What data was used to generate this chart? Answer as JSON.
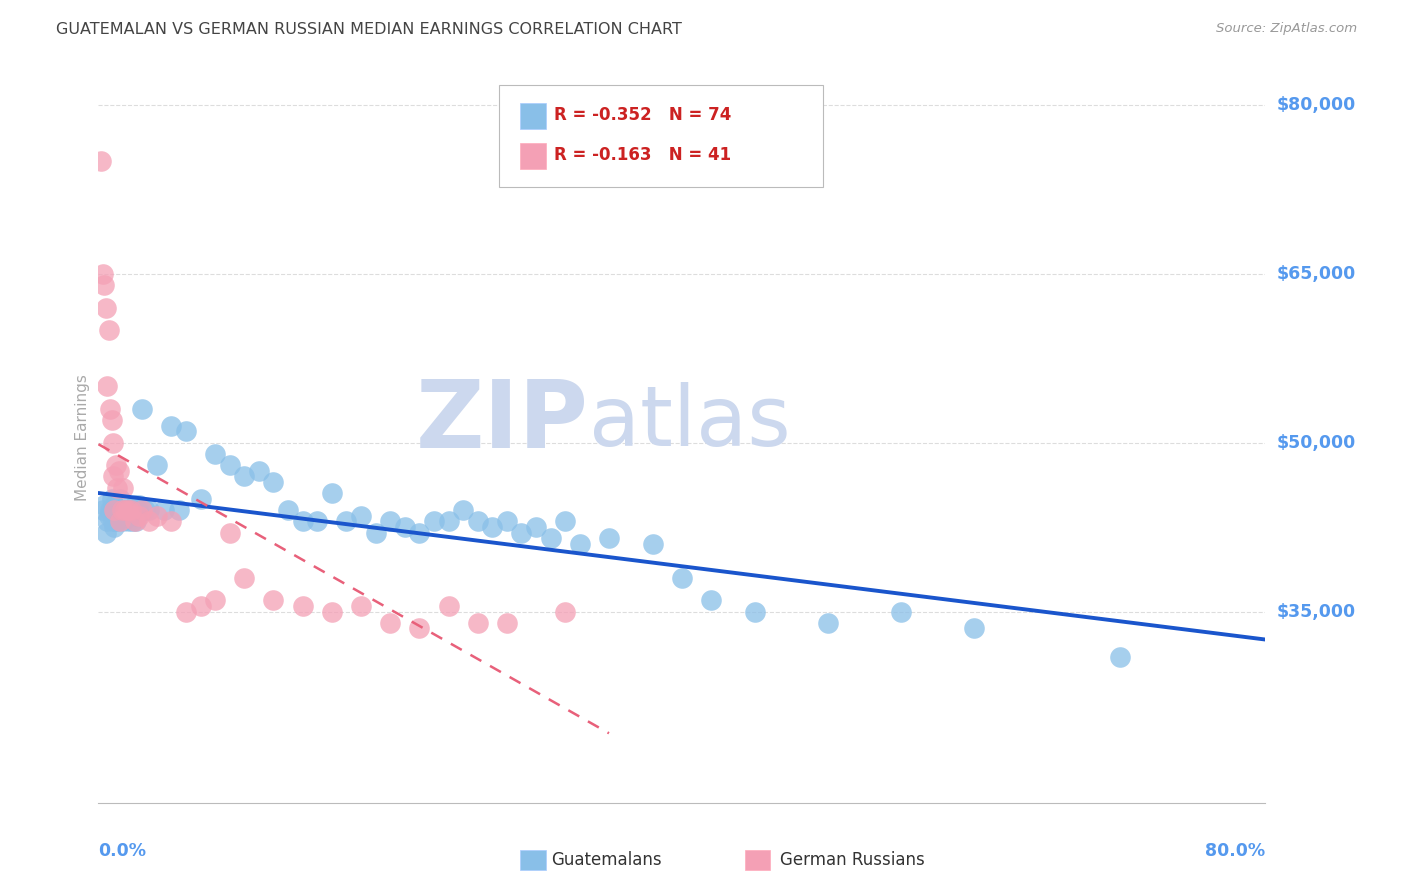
{
  "title": "GUATEMALAN VS GERMAN RUSSIAN MEDIAN EARNINGS CORRELATION CHART",
  "source": "Source: ZipAtlas.com",
  "ylabel": "Median Earnings",
  "y_ticks": [
    35000,
    50000,
    65000,
    80000
  ],
  "y_tick_labels": [
    "$35,000",
    "$50,000",
    "$65,000",
    "$80,000"
  ],
  "x_min": 0.0,
  "x_max": 80.0,
  "y_min": 18000,
  "y_max": 83000,
  "watermark_line1": "ZIP",
  "watermark_line2": "atlas",
  "guatemalan_color": "#89bfe8",
  "german_russian_color": "#f4a0b5",
  "guatemalan_line_color": "#1a55cc",
  "german_russian_line_color": "#e8607a",
  "legend_r1": "R = -0.352",
  "legend_n1": "N = 74",
  "legend_r2": "R = -0.163",
  "legend_n2": "N = 41",
  "legend_label1": "Guatemalans",
  "legend_label2": "German Russians",
  "guatemalan_x": [
    0.3,
    0.4,
    0.5,
    0.6,
    0.7,
    0.8,
    0.9,
    1.0,
    1.0,
    1.1,
    1.1,
    1.2,
    1.3,
    1.3,
    1.4,
    1.5,
    1.5,
    1.6,
    1.7,
    1.8,
    1.9,
    2.0,
    2.1,
    2.2,
    2.3,
    2.4,
    2.5,
    2.6,
    2.7,
    2.8,
    3.0,
    3.2,
    3.5,
    4.0,
    4.5,
    5.0,
    5.5,
    6.0,
    7.0,
    8.0,
    9.0,
    10.0,
    11.0,
    12.0,
    13.0,
    14.0,
    15.0,
    16.0,
    17.0,
    18.0,
    19.0,
    20.0,
    21.0,
    22.0,
    23.0,
    24.0,
    25.0,
    26.0,
    27.0,
    28.0,
    29.0,
    30.0,
    31.0,
    32.0,
    33.0,
    35.0,
    38.0,
    40.0,
    42.0,
    45.0,
    50.0,
    55.0,
    60.0,
    70.0
  ],
  "guatemalan_y": [
    44000,
    44500,
    42000,
    43000,
    43500,
    44000,
    45000,
    44000,
    43000,
    44500,
    42500,
    43000,
    43500,
    43000,
    44000,
    45000,
    43500,
    44000,
    43000,
    44000,
    43500,
    44000,
    43000,
    43500,
    44000,
    43000,
    44500,
    43000,
    44000,
    44500,
    53000,
    44000,
    44000,
    48000,
    44000,
    51500,
    44000,
    51000,
    45000,
    49000,
    48000,
    47000,
    47500,
    46500,
    44000,
    43000,
    43000,
    45500,
    43000,
    43500,
    42000,
    43000,
    42500,
    42000,
    43000,
    43000,
    44000,
    43000,
    42500,
    43000,
    42000,
    42500,
    41500,
    43000,
    41000,
    41500,
    41000,
    38000,
    36000,
    35000,
    34000,
    35000,
    33500,
    31000
  ],
  "german_russian_x": [
    0.2,
    0.3,
    0.4,
    0.5,
    0.6,
    0.7,
    0.8,
    0.9,
    1.0,
    1.0,
    1.1,
    1.2,
    1.3,
    1.4,
    1.5,
    1.6,
    1.7,
    1.8,
    2.0,
    2.2,
    2.5,
    2.8,
    3.0,
    3.5,
    4.0,
    5.0,
    6.0,
    7.0,
    8.0,
    9.0,
    10.0,
    12.0,
    14.0,
    16.0,
    18.0,
    20.0,
    22.0,
    24.0,
    26.0,
    28.0,
    32.0
  ],
  "german_russian_y": [
    75000,
    65000,
    64000,
    62000,
    55000,
    60000,
    53000,
    52000,
    50000,
    47000,
    44000,
    48000,
    46000,
    47500,
    43000,
    44000,
    46000,
    44000,
    44000,
    44000,
    43000,
    43500,
    44000,
    43000,
    43500,
    43000,
    35000,
    35500,
    36000,
    42000,
    38000,
    36000,
    35500,
    35000,
    35500,
    34000,
    33500,
    35500,
    34000,
    34000,
    35000
  ],
  "gr_line_x_end": 35.0,
  "background_color": "#ffffff",
  "grid_color": "#dddddd",
  "title_color": "#444444",
  "axis_color": "#5599ee",
  "watermark_color": "#ccd8ee"
}
